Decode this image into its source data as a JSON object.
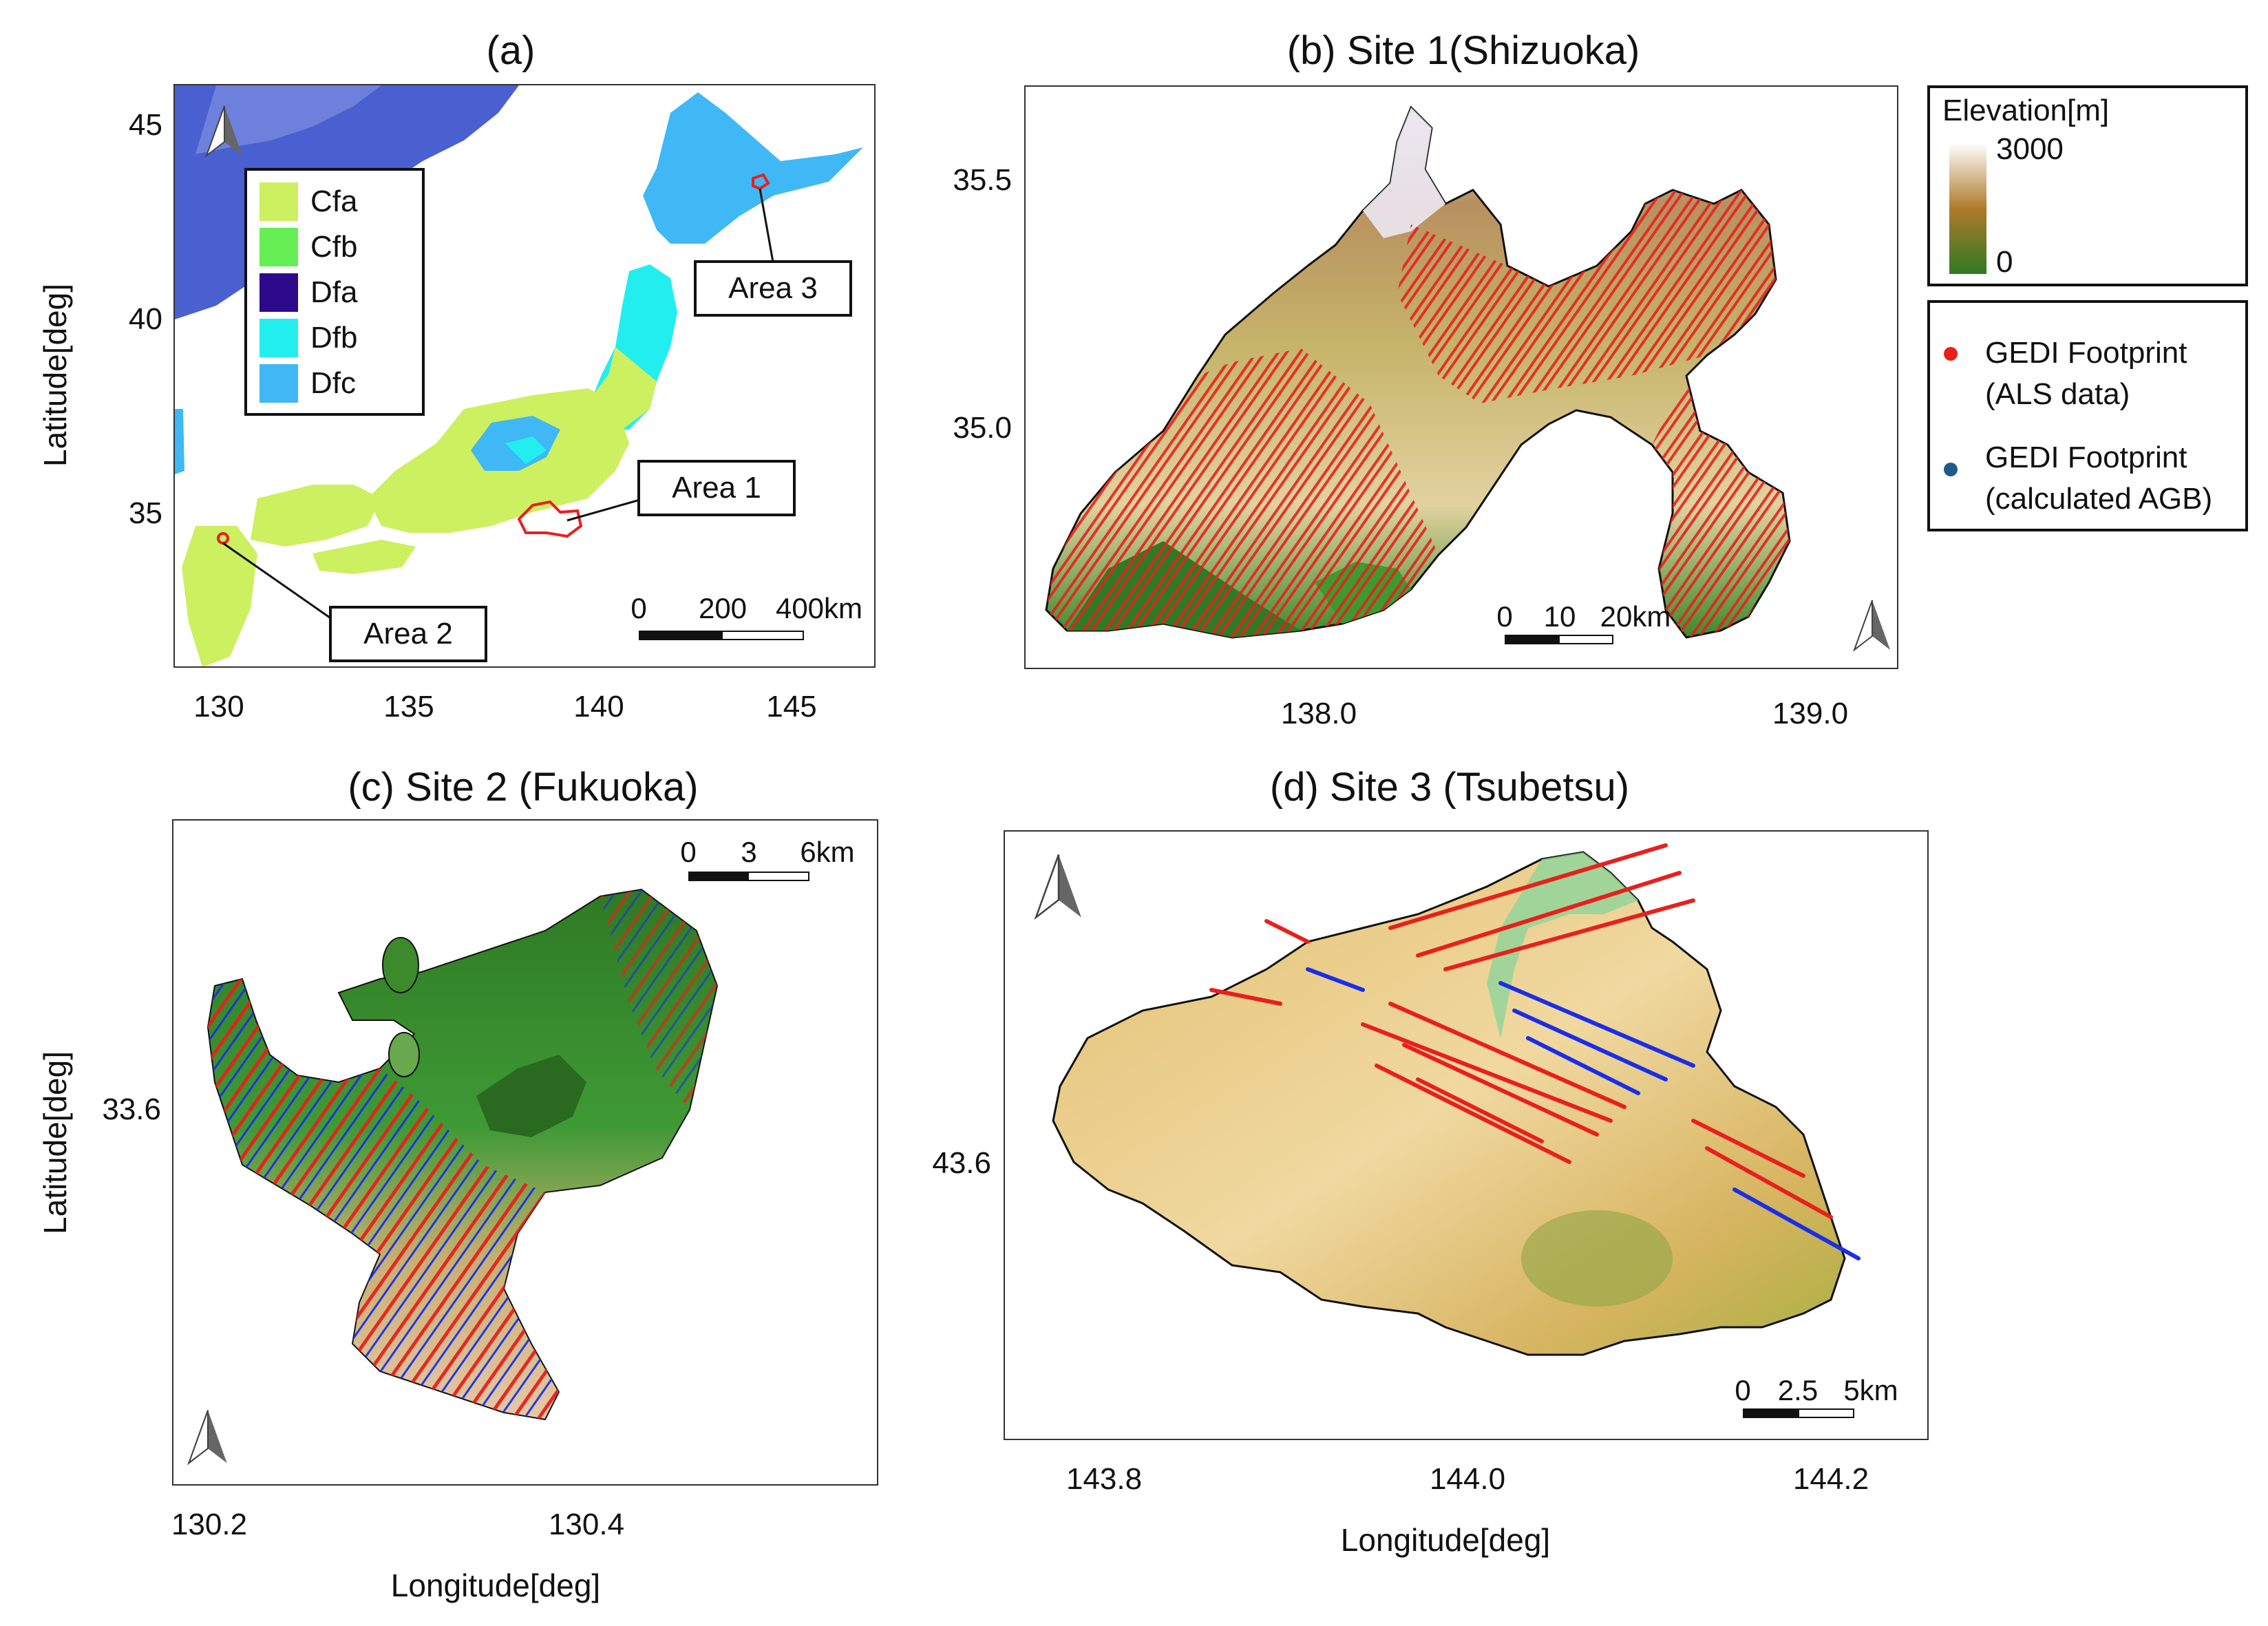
{
  "colors": {
    "cfa": "#ccf060",
    "cfb": "#66ee55",
    "dfa": "#2d0a8c",
    "dfb": "#22eef0",
    "dfc": "#3fb8f5",
    "gedi_als": "#e8201c",
    "gedi_agb": "#1f5a8a",
    "track_blue": "#1a2ee8",
    "outline": "#111111"
  },
  "panel_a": {
    "title": "(a)",
    "ylabel": "Latitude[deg]",
    "x_ticks": [
      "130",
      "135",
      "140",
      "145"
    ],
    "y_ticks": [
      "45",
      "40",
      "35"
    ],
    "legend": [
      {
        "label": "Cfa",
        "color_key": "cfa"
      },
      {
        "label": "Cfb",
        "color_key": "cfb"
      },
      {
        "label": "Dfa",
        "color_key": "dfa"
      },
      {
        "label": "Dfb",
        "color_key": "dfb"
      },
      {
        "label": "Dfc",
        "color_key": "dfc"
      }
    ],
    "callouts": {
      "area1": "Area 1",
      "area2": "Area 2",
      "area3": "Area 3"
    },
    "scale": {
      "l0": "0",
      "l1": "200",
      "l2": "400km"
    },
    "north_icon": "north-arrow-icon"
  },
  "panel_b": {
    "title": "(b) Site 1(Shizuoka)",
    "x_ticks": [
      "138.0",
      "139.0"
    ],
    "y_ticks": [
      "35.5",
      "35.0"
    ],
    "scale": {
      "l0": "0",
      "l1": "10",
      "l2": "20km"
    },
    "north_icon": "north-arrow-icon"
  },
  "elevation_legend": {
    "title": "Elevation[m]",
    "max": "3000",
    "min": "0"
  },
  "gedi_legend": {
    "als_line1": "GEDI Footprint",
    "als_line2": "(ALS data)",
    "agb_line1": "GEDI Footprint",
    "agb_line2": "(calculated AGB)"
  },
  "panel_c": {
    "title": "(c) Site 2 (Fukuoka)",
    "ylabel": "Latitude[deg]",
    "xlabel": "Longitude[deg]",
    "x_ticks": [
      "130.2",
      "130.4"
    ],
    "y_ticks": [
      "33.6"
    ],
    "scale": {
      "l0": "0",
      "l1": "3",
      "l2": "6km"
    },
    "north_icon": "north-arrow-icon"
  },
  "panel_d": {
    "title": "(d) Site 3 (Tsubetsu)",
    "xlabel": "Longitude[deg]",
    "x_ticks": [
      "143.8",
      "144.0",
      "144.2"
    ],
    "y_ticks": [
      "43.6"
    ],
    "scale": {
      "l0": "0",
      "l1": "2.5",
      "l2": "5km"
    },
    "north_icon": "north-arrow-icon"
  }
}
